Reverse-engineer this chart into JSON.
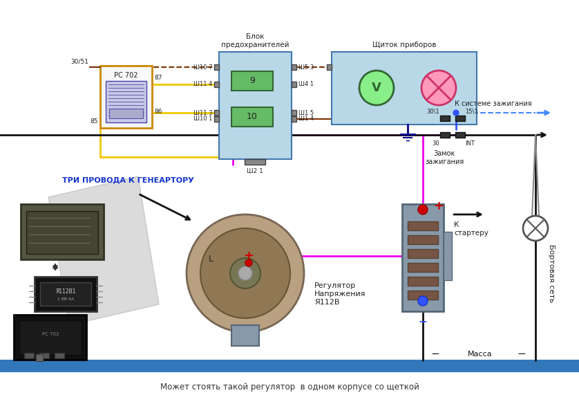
{
  "bg_color": "#ffffff",
  "fuse_block_label": "Блок\nпредохранителей",
  "instrument_panel_label": "Щиток приборов",
  "relay_label": "РС 702",
  "ignition_lock_label": "Замок\nзажигания",
  "to_ignition_label": "К системе зажигания",
  "to_starter_label": "К\nстартеру",
  "board_net_label": "Бортовая сеть",
  "ground_label": "Масса",
  "three_wires_label": "ТРИ ПРОВОДА К ГЕНЕАРТОРУ",
  "voltage_reg_label": "Регулятор\nНапряжения\nЯ112В",
  "bottom_label": "Может стоять такой регулятор  в одном корпусе со щеткой",
  "L_label": "L",
  "fuse_box_color": "#b8d8e8",
  "fuse_box_border": "#4477aa",
  "instrument_box_color": "#b8d8e8",
  "instrument_box_border": "#4477aa",
  "relay_box_color": "#f8f8f8",
  "relay_box_border": "#cc8800",
  "coil_box_color": "#c8c8e8",
  "coil_border": "#4444aa",
  "battery_box_color": "#8899aa",
  "battery_box_border": "#556677",
  "wire_brown": "#7B3000",
  "wire_yellow": "#EEC900",
  "wire_pink": "#EE00EE",
  "wire_blue_dash": "#4488ff",
  "wire_black": "#111111",
  "wire_red": "#ee0000",
  "fuse_green": "#66bb66",
  "fuse_border": "#336633",
  "voltmeter_green": "#44cc44",
  "lamp_pink": "#ff99bb",
  "lamp_border": "#cc3366",
  "connector_color": "#888888",
  "connector_border": "#444444",
  "photo_bg": "#dddddd",
  "photo_bg2": "#cccccc"
}
